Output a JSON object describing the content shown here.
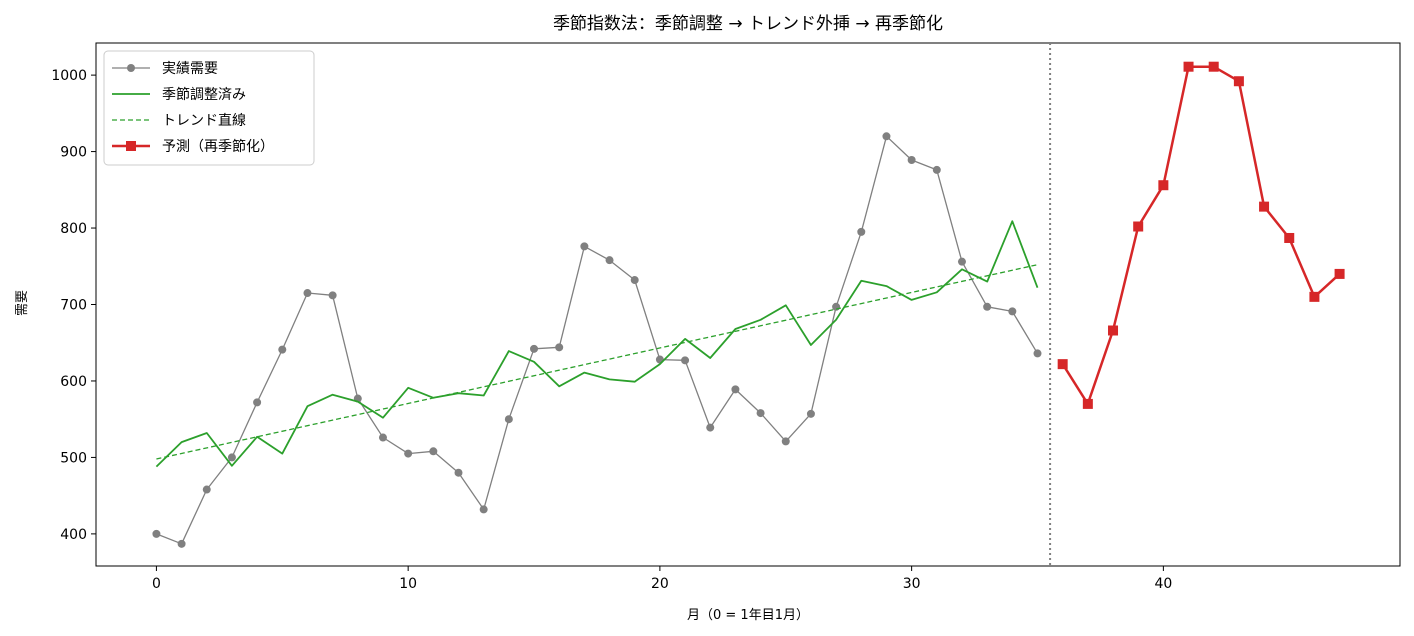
{
  "chart_data": {
    "type": "line",
    "title": "季節指数法：季節調整 → トレンド外挿 → 再季節化",
    "xlabel": "月（0 = 1年目1月）",
    "ylabel": "需要",
    "xlim": [
      -2.4,
      49.4
    ],
    "ylim": [
      358,
      1042
    ],
    "xticks": [
      0,
      10,
      20,
      30,
      40
    ],
    "yticks": [
      400,
      500,
      600,
      700,
      800,
      900,
      1000
    ],
    "grid": false,
    "legend": "top-left",
    "forecast_boundary_x": 35.5,
    "series": [
      {
        "name": "実績需要",
        "color": "#808080",
        "style": "line-marker-circle",
        "x": [
          0,
          1,
          2,
          3,
          4,
          5,
          6,
          7,
          8,
          9,
          10,
          11,
          12,
          13,
          14,
          15,
          16,
          17,
          18,
          19,
          20,
          21,
          22,
          23,
          24,
          25,
          26,
          27,
          28,
          29,
          30,
          31,
          32,
          33,
          34,
          35
        ],
        "y": [
          400,
          387,
          458,
          500,
          572,
          641,
          715,
          712,
          577,
          526,
          505,
          508,
          480,
          432,
          550,
          642,
          644,
          776,
          758,
          732,
          628,
          627,
          539,
          589,
          558,
          521,
          557,
          697,
          795,
          920,
          889,
          876,
          756,
          697,
          691,
          636
        ]
      },
      {
        "name": "季節調整済み",
        "color": "#2ca02c",
        "style": "line",
        "x": [
          0,
          1,
          2,
          3,
          4,
          5,
          6,
          7,
          8,
          9,
          10,
          11,
          12,
          13,
          14,
          15,
          16,
          17,
          18,
          19,
          20,
          21,
          22,
          23,
          24,
          25,
          26,
          27,
          28,
          29,
          30,
          31,
          32,
          33,
          34,
          35
        ],
        "y": [
          488,
          520,
          532,
          489,
          527,
          505,
          567,
          582,
          573,
          552,
          591,
          578,
          584,
          581,
          639,
          625,
          593,
          611,
          602,
          599,
          622,
          655,
          630,
          668,
          680,
          699,
          647,
          680,
          731,
          724,
          706,
          716,
          746,
          730,
          809,
          722
        ]
      },
      {
        "name": "トレンド直線",
        "color": "#2ca02c",
        "style": "dashed",
        "x": [
          0,
          35
        ],
        "y": [
          498,
          752
        ]
      },
      {
        "name": "予測（再季節化）",
        "color": "#d62728",
        "style": "line-marker-square",
        "x": [
          36,
          37,
          38,
          39,
          40,
          41,
          42,
          43,
          44,
          45,
          46,
          47
        ],
        "y": [
          622,
          570,
          666,
          802,
          856,
          1011,
          1011,
          992,
          828,
          787,
          710,
          740
        ]
      }
    ]
  }
}
